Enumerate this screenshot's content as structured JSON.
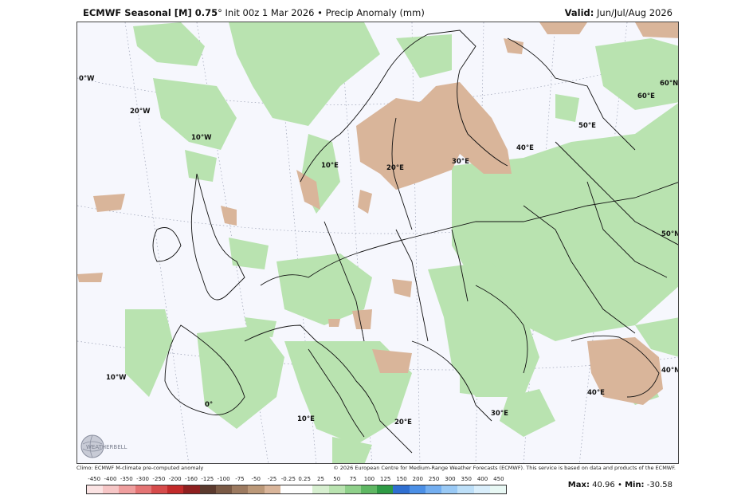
{
  "header": {
    "model_prefix": "ECMWF Seasonal [M] 0.75",
    "degree": "°",
    "init": "Init 00z 1 Mar 2026",
    "bullet": "•",
    "field": "Precip Anomaly (mm)",
    "valid_label": "Valid:",
    "valid_value": "Jun/Jul/Aug 2026"
  },
  "map": {
    "labels": {
      "lon_0w_top": "0°W",
      "lon_20w": "20°W",
      "lon_10w": "10°W",
      "lon_10e_top": "10°E",
      "lon_20e_top": "20°E",
      "lon_30e_top": "30°E",
      "lon_40e_top": "40°E",
      "lon_50e": "50°E",
      "lon_60e": "60°E",
      "lat_60n": "60°N",
      "lat_50n": "50°N",
      "lat_40n": "40°N",
      "lon_10w_bottom": "10°W",
      "lon_0_bottom": "0°",
      "lon_10e_bottom": "10°E",
      "lon_20e_bottom": "20°E",
      "lon_30e_bottom": "30°E",
      "lon_40e_bottom": "40°E"
    },
    "colors": {
      "background": "#f6f7fd",
      "wet": "#b9e3b0",
      "dry": "#d9b59a",
      "borders": "#111111"
    }
  },
  "logo": {
    "text": "WEATHERBELL"
  },
  "footer": {
    "climo": "Climo: ECMWF M-climate pre-computed anomaly",
    "copyright": "© 2026 European Centre for Medium-Range Weather Forecasts (ECMWF). This service is based on data and products of the ECMWF.",
    "max_label": "Max:",
    "max_value": "40.96",
    "sep": "•",
    "min_label": "Min:",
    "min_value": "-30.58"
  },
  "colorbar": {
    "ticks": [
      "-450",
      "-400",
      "-350",
      "-300",
      "-250",
      "-200",
      "-160",
      "-125",
      "-100",
      "-75",
      "-50",
      "-25",
      "-0.25",
      "0.25",
      "25",
      "50",
      "75",
      "100",
      "125",
      "150",
      "200",
      "250",
      "300",
      "350",
      "400",
      "450"
    ],
    "colors": [
      "#fbe3e3",
      "#f6c6c6",
      "#ef9e9e",
      "#e47474",
      "#d64b4b",
      "#c22a2a",
      "#8f2020",
      "#5b3a2e",
      "#7a5a45",
      "#9c7a60",
      "#bb9878",
      "#d9b59a",
      "#ffffff",
      "#ffffff",
      "#d7efd0",
      "#b9e3b0",
      "#8fd08a",
      "#5fb763",
      "#2e9a44",
      "#2f6fd1",
      "#4b8fe6",
      "#73aef0",
      "#99c9f5",
      "#bddff8",
      "#d9eefb",
      "#e8f8f4"
    ]
  }
}
